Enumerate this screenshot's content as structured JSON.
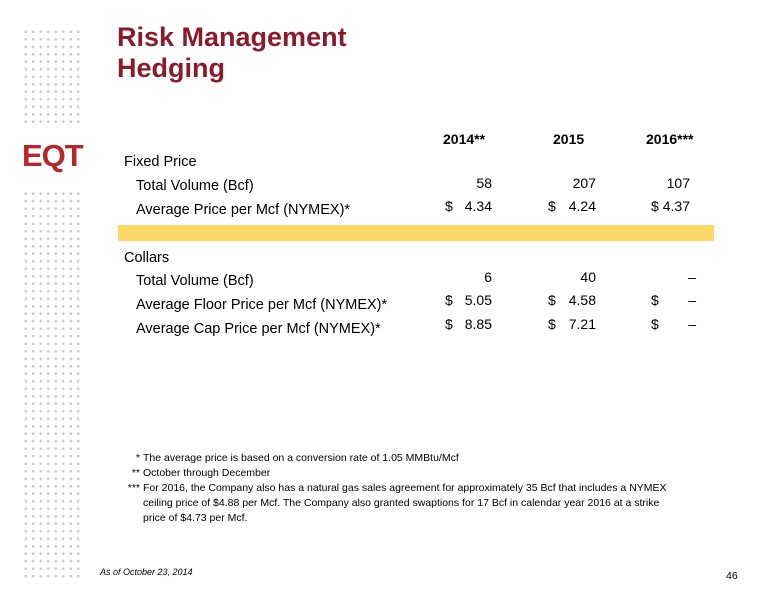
{
  "header": {
    "title_line1": "Risk Management",
    "title_line2": "Hedging",
    "logo_text": "EQT"
  },
  "table": {
    "columns": [
      "2014**",
      "2015",
      "2016***"
    ],
    "fixed_price": {
      "section": "Fixed Price",
      "rows": [
        {
          "label": "Total Volume (Bcf)",
          "cells": [
            {
              "dollar": "",
              "value": "58"
            },
            {
              "dollar": "",
              "value": "207"
            },
            {
              "dollar": "",
              "value": "107"
            }
          ]
        },
        {
          "label": "Average Price per Mcf (NYMEX)*",
          "cells": [
            {
              "dollar": "$",
              "value": "4.34"
            },
            {
              "dollar": "$",
              "value": "4.24"
            },
            {
              "dollar": "$",
              "value": "4.37"
            }
          ]
        }
      ]
    },
    "collars": {
      "section": "Collars",
      "rows": [
        {
          "label": "Total Volume (Bcf)",
          "cells": [
            {
              "dollar": "",
              "value": "6"
            },
            {
              "dollar": "",
              "value": "40"
            },
            {
              "dollar": "",
              "value": "–"
            }
          ]
        },
        {
          "label": "Average Floor Price per Mcf (NYMEX)*",
          "cells": [
            {
              "dollar": "$",
              "value": "5.05"
            },
            {
              "dollar": "$",
              "value": "4.58"
            },
            {
              "dollar": "$",
              "value": "–"
            }
          ]
        },
        {
          "label": "Average Cap Price per Mcf (NYMEX)*",
          "cells": [
            {
              "dollar": "$",
              "value": "8.85"
            },
            {
              "dollar": "$",
              "value": "7.21"
            },
            {
              "dollar": "$",
              "value": "–"
            }
          ]
        }
      ]
    }
  },
  "footnotes": [
    {
      "marker": "*",
      "text": "The average price is based on a conversion rate of 1.05 MMBtu/Mcf"
    },
    {
      "marker": "**",
      "text": "October through December"
    },
    {
      "marker": "***",
      "text": "For 2016, the Company also has a natural gas sales agreement for approximately 35 Bcf that includes a NYMEX"
    }
  ],
  "footnote_continuation": [
    "ceiling price of $4.88 per Mcf. The Company also granted swaptions for 17 Bcf in calendar year 2016 at a strike",
    "price of $4.73 per Mcf."
  ],
  "footer": {
    "as_of": "As of October 23, 2014",
    "page_number": "46"
  },
  "colors": {
    "title": "#8a1b2b",
    "highlight_band": "#fad967",
    "logo_red": "#b5262f"
  }
}
